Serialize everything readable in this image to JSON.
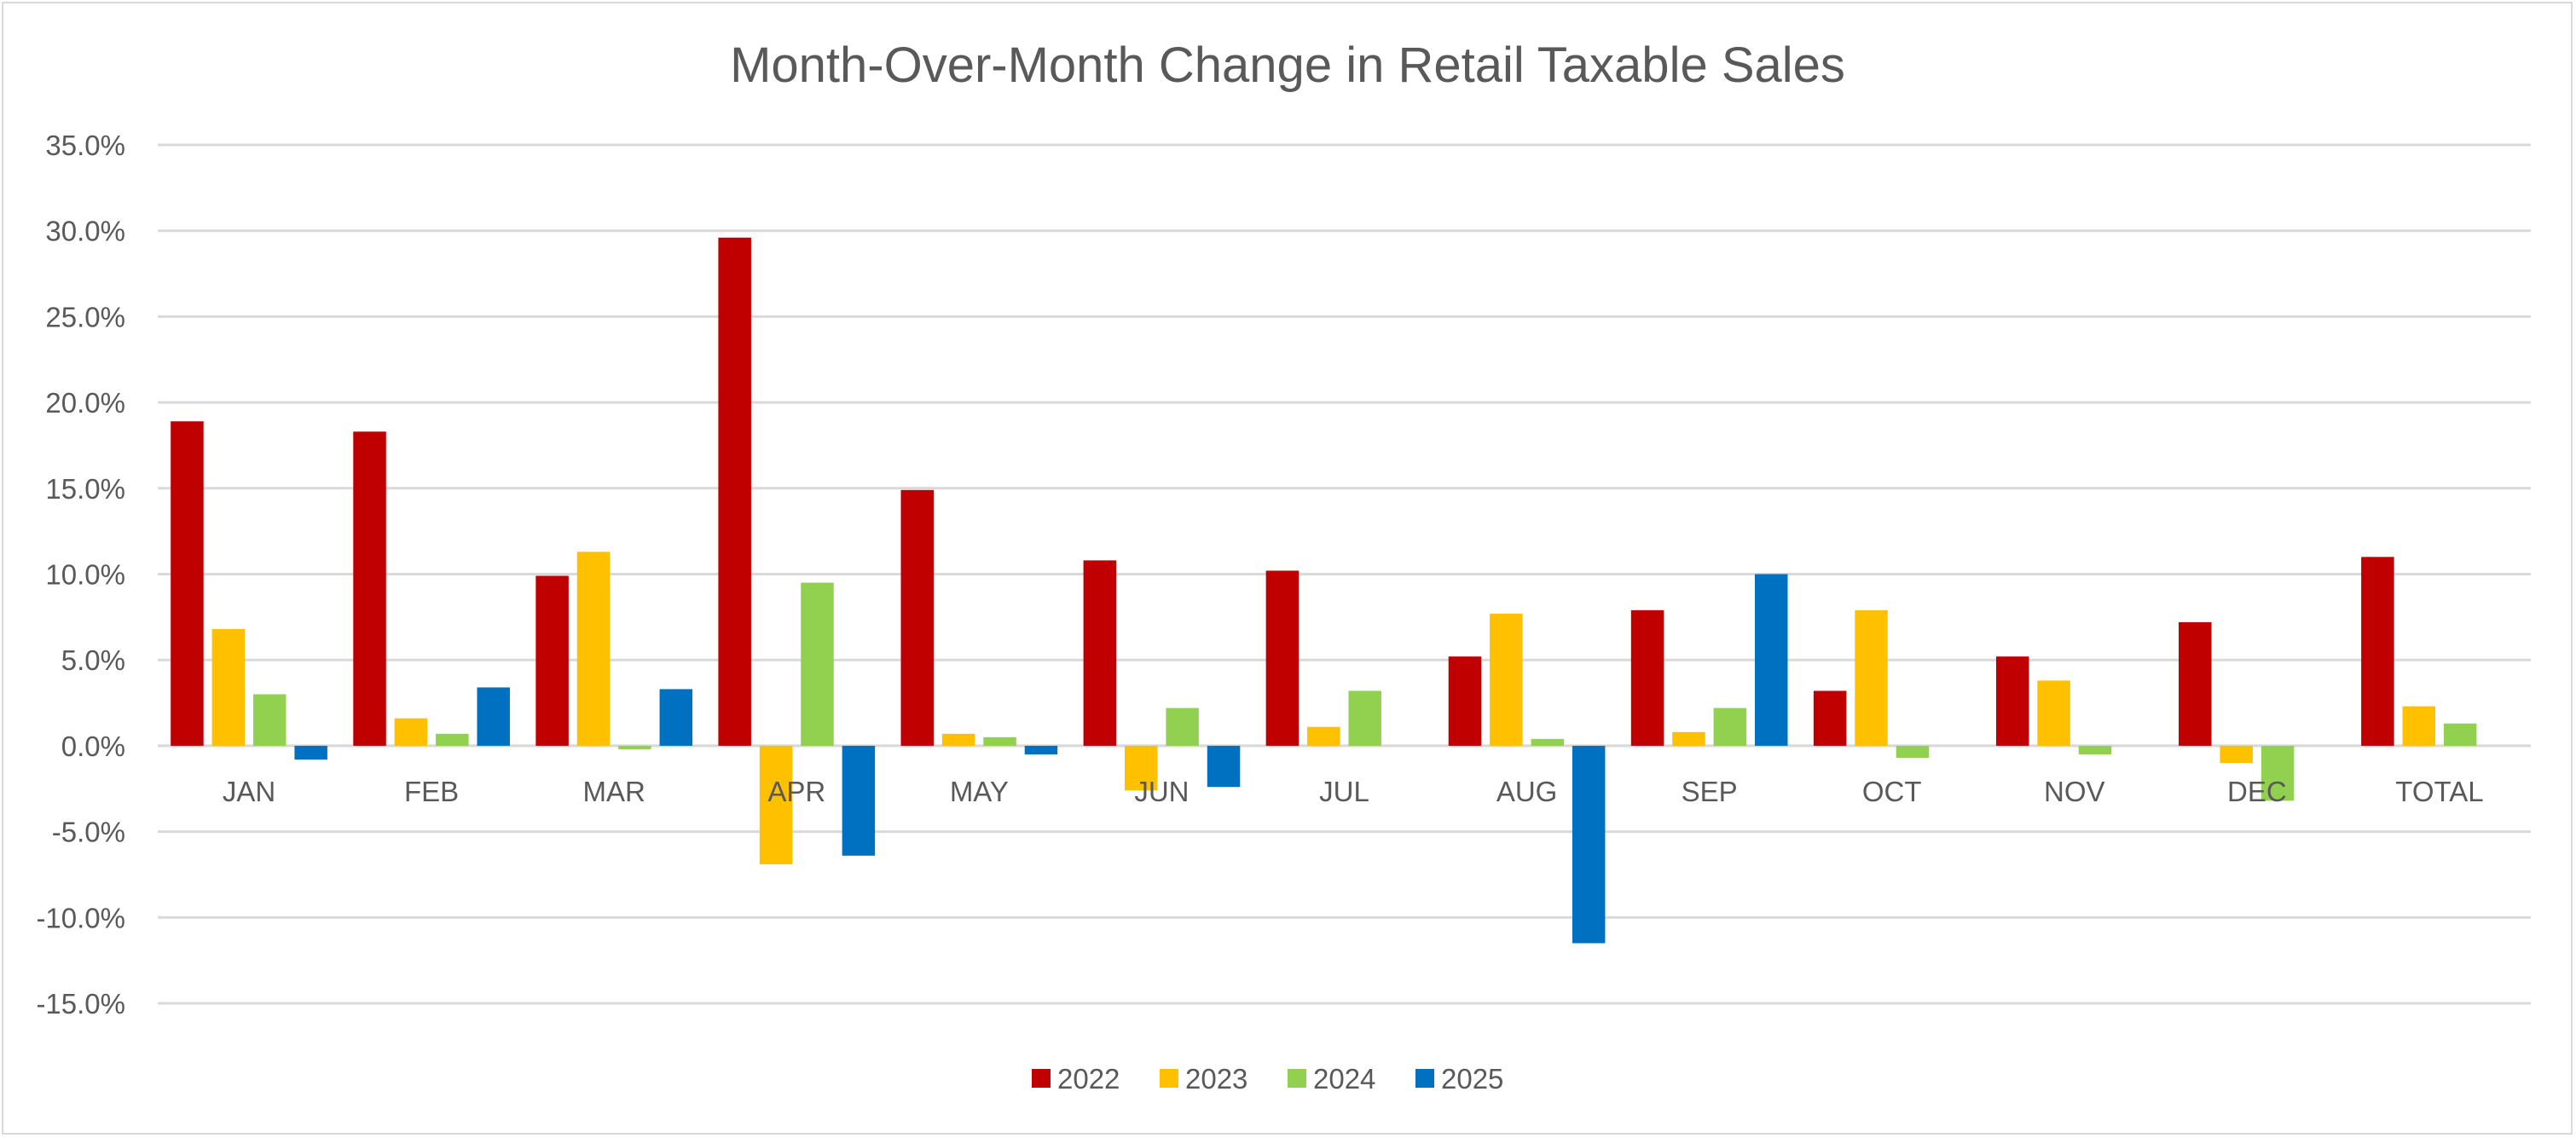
{
  "chart_data": {
    "type": "bar",
    "title": "Month-Over-Month Change in Retail Taxable Sales",
    "xlabel": "",
    "ylabel": "",
    "categories": [
      "JAN",
      "FEB",
      "MAR",
      "APR",
      "MAY",
      "JUN",
      "JUL",
      "AUG",
      "SEP",
      "OCT",
      "NOV",
      "DEC",
      "TOTAL"
    ],
    "ylim": [
      -15,
      35
    ],
    "yticks": [
      35,
      30,
      25,
      20,
      15,
      10,
      5,
      0,
      -5,
      -10,
      -15
    ],
    "ytick_labels": [
      "35.0%",
      "30.0%",
      "25.0%",
      "20.0%",
      "15.0%",
      "10.0%",
      "5.0%",
      "0.0%",
      "-5.0%",
      "-10.0%",
      "-15.0%"
    ],
    "unit": "%",
    "grid": true,
    "legend_position": "bottom",
    "series": [
      {
        "name": "2022",
        "color": "#C00000",
        "values": [
          18.9,
          18.3,
          9.9,
          29.6,
          14.9,
          10.8,
          10.2,
          5.2,
          7.9,
          3.2,
          5.2,
          7.2,
          11.0
        ]
      },
      {
        "name": "2023",
        "color": "#FFC000",
        "values": [
          6.8,
          1.6,
          11.3,
          -6.9,
          0.7,
          -2.6,
          1.1,
          7.7,
          0.8,
          7.9,
          3.8,
          -1.0,
          2.3
        ]
      },
      {
        "name": "2024",
        "color": "#92D050",
        "values": [
          3.0,
          0.7,
          -0.2,
          9.5,
          0.5,
          2.2,
          3.2,
          0.4,
          2.2,
          -0.7,
          -0.5,
          -3.2,
          1.3
        ]
      },
      {
        "name": "2025",
        "color": "#0070C0",
        "values": [
          -0.8,
          3.4,
          3.3,
          -6.4,
          -0.5,
          -2.4,
          null,
          -11.5,
          10.0,
          null,
          null,
          null,
          null
        ]
      }
    ]
  }
}
